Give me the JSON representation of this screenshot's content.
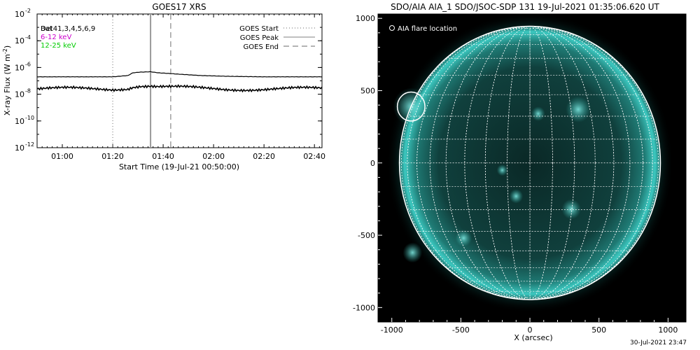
{
  "chart_data": [
    {
      "type": "line",
      "title": "GOES17 XRS",
      "xlabel": "Start Time (19-Jul-21 00:50:00)",
      "ylabel": "X-ray Flux (W m",
      "ylabel_sup": "-2",
      "ylabel_close": ")",
      "x_ticks": [
        "01:00",
        "01:20",
        "01:40",
        "02:00",
        "02:20",
        "02:40"
      ],
      "x_tick_minutes": [
        10,
        30,
        50,
        70,
        90,
        110
      ],
      "xlim_minutes": [
        0,
        113
      ],
      "y_ticks": [
        {
          "base": "10",
          "exp": "-2",
          "value": 0.01
        },
        {
          "base": "10",
          "exp": "-4",
          "value": 0.0001
        },
        {
          "base": "10",
          "exp": "-6",
          "value": 1e-06
        },
        {
          "base": "10",
          "exp": "-8",
          "value": 1e-08
        },
        {
          "base": "10",
          "exp": "-10",
          "value": 1e-10
        },
        {
          "base": "10",
          "exp": "-12",
          "value": 1e-12
        }
      ],
      "yscale": "log",
      "ylim": [
        1e-12,
        0.01
      ],
      "channel_labels": [
        {
          "text": "Det41,3,4,5,6,9",
          "overprint": "Bat",
          "color": "#000000"
        },
        {
          "text": "6-12 keV",
          "color": "#cc00cc"
        },
        {
          "text": "12-25 keV",
          "color": "#00cc00"
        }
      ],
      "markers_legend": [
        {
          "name": "GOES Start",
          "style": "dotted",
          "minute": 30
        },
        {
          "name": "GOES Peak",
          "style": "solid",
          "minute": 45
        },
        {
          "name": "GOES End",
          "style": "dashed",
          "minute": 53
        }
      ],
      "series": [
        {
          "name": "long",
          "x": [
            0,
            10,
            20,
            30,
            36,
            38,
            41,
            45,
            48,
            53,
            58,
            65,
            75,
            90,
            113
          ],
          "y": [
            2e-07,
            2e-07,
            2e-07,
            2e-07,
            2.5e-07,
            4e-07,
            4.5e-07,
            4.8e-07,
            4e-07,
            3.5e-07,
            3e-07,
            2.5e-07,
            2.2e-07,
            2e-07,
            2e-07
          ]
        },
        {
          "name": "short",
          "x": [
            0,
            10,
            20,
            30,
            36,
            38,
            41,
            45,
            48,
            53,
            58,
            65,
            75,
            90,
            113
          ],
          "y": [
            2.5e-08,
            2.5e-08,
            2.5e-08,
            2.5e-08,
            3e-08,
            4e-08,
            4.5e-08,
            4.2e-08,
            3.6e-08,
            3.2e-08,
            3e-08,
            2.7e-08,
            2.5e-08,
            2.5e-08,
            2.5e-08
          ]
        }
      ]
    },
    {
      "type": "image",
      "title": "SDO/AIA AIA_1 SDO/JSOC-SDP 131 19-Jul-2021 01:35:06.620 UT",
      "xlabel": "X (arcsec)",
      "x_ticks": [
        -1000,
        -500,
        0,
        500,
        1000
      ],
      "y_ticks": [
        1000,
        500,
        0,
        -500,
        -1000
      ],
      "xlim": [
        -1100,
        1130
      ],
      "ylim": [
        -1100,
        1030
      ],
      "legend": "AIA flare location",
      "solar_radius_arcsec": 945,
      "flare_location": {
        "x": -860,
        "y": 390,
        "radius_arcsec": 100
      },
      "colors": {
        "disk": "#0e2f2d",
        "limb": "#3cc8c0",
        "grid": "#ffffff",
        "background": "#000000"
      }
    }
  ],
  "footer": {
    "timestamp": "30-Jul-2021 23:47"
  }
}
